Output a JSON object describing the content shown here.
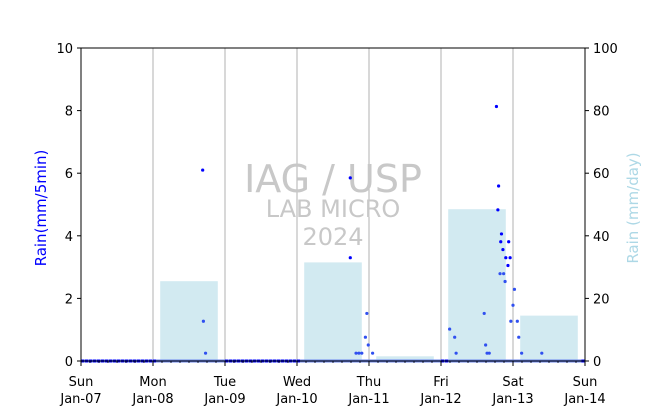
{
  "chart_data": {
    "type": "bar",
    "watermark": {
      "line1": "IAG / USP",
      "line2": "LAB MICRO",
      "line3": "2024"
    },
    "ylabel": "Rain(mm/5min)",
    "y2label": "Rain (mm/day)",
    "ylim": [
      0,
      10
    ],
    "y2lim": [
      0,
      100
    ],
    "yticks": [
      0,
      2,
      4,
      6,
      8,
      10
    ],
    "y2ticks": [
      0,
      20,
      40,
      60,
      80,
      100
    ],
    "xlim": [
      0,
      7
    ],
    "xticks": [
      {
        "day": "Sun",
        "date": "Jan-07"
      },
      {
        "day": "Mon",
        "date": "Jan-08"
      },
      {
        "day": "Tue",
        "date": "Jan-09"
      },
      {
        "day": "Wed",
        "date": "Jan-10"
      },
      {
        "day": "Thu",
        "date": "Jan-11"
      },
      {
        "day": "Fri",
        "date": "Jan-12"
      },
      {
        "day": "Sat",
        "date": "Jan-13"
      },
      {
        "day": "Sun",
        "date": "Jan-14"
      }
    ],
    "grid": "vertical",
    "colors": {
      "rain5min": "#0000ff",
      "daily": "#add8e6",
      "zeroline": "#6b86ee",
      "ylabel": "#0000ff",
      "y2label": "#add8e6"
    },
    "daily_totals": [
      {
        "day": 0,
        "value": 0
      },
      {
        "day": 1,
        "value": 25.5
      },
      {
        "day": 2,
        "value": 0
      },
      {
        "day": 3,
        "value": 31.5
      },
      {
        "day": 4,
        "value": 1.5
      },
      {
        "day": 5,
        "value": 48.5
      },
      {
        "day": 6,
        "value": 14.5
      }
    ],
    "rain_5min": [
      {
        "x": 1.7,
        "y": 1.27
      },
      {
        "x": 1.69,
        "y": 6.1
      },
      {
        "x": 1.73,
        "y": 0.25
      },
      {
        "x": 3.74,
        "y": 5.85
      },
      {
        "x": 3.74,
        "y": 3.3
      },
      {
        "x": 3.82,
        "y": 0.25
      },
      {
        "x": 3.86,
        "y": 0.25
      },
      {
        "x": 3.9,
        "y": 0.25
      },
      {
        "x": 3.95,
        "y": 0.76
      },
      {
        "x": 3.97,
        "y": 1.52
      },
      {
        "x": 3.99,
        "y": 0.51
      },
      {
        "x": 4.05,
        "y": 0.25
      },
      {
        "x": 5.12,
        "y": 1.02
      },
      {
        "x": 5.19,
        "y": 0.76
      },
      {
        "x": 5.21,
        "y": 0.25
      },
      {
        "x": 5.6,
        "y": 1.52
      },
      {
        "x": 5.62,
        "y": 0.51
      },
      {
        "x": 5.64,
        "y": 0.25
      },
      {
        "x": 5.67,
        "y": 0.25
      },
      {
        "x": 5.77,
        "y": 8.13
      },
      {
        "x": 5.79,
        "y": 4.83
      },
      {
        "x": 5.8,
        "y": 5.59
      },
      {
        "x": 5.82,
        "y": 2.79
      },
      {
        "x": 5.83,
        "y": 3.81
      },
      {
        "x": 5.84,
        "y": 4.06
      },
      {
        "x": 5.86,
        "y": 3.56
      },
      {
        "x": 5.87,
        "y": 2.79
      },
      {
        "x": 5.89,
        "y": 2.54
      },
      {
        "x": 5.9,
        "y": 3.3
      },
      {
        "x": 5.93,
        "y": 3.05
      },
      {
        "x": 5.94,
        "y": 3.81
      },
      {
        "x": 5.96,
        "y": 3.3
      },
      {
        "x": 5.97,
        "y": 1.27
      },
      {
        "x": 6.0,
        "y": 1.78
      },
      {
        "x": 6.02,
        "y": 2.29
      },
      {
        "x": 6.06,
        "y": 1.27
      },
      {
        "x": 6.08,
        "y": 0.76
      },
      {
        "x": 6.12,
        "y": 0.25
      },
      {
        "x": 6.4,
        "y": 0.25
      }
    ]
  }
}
